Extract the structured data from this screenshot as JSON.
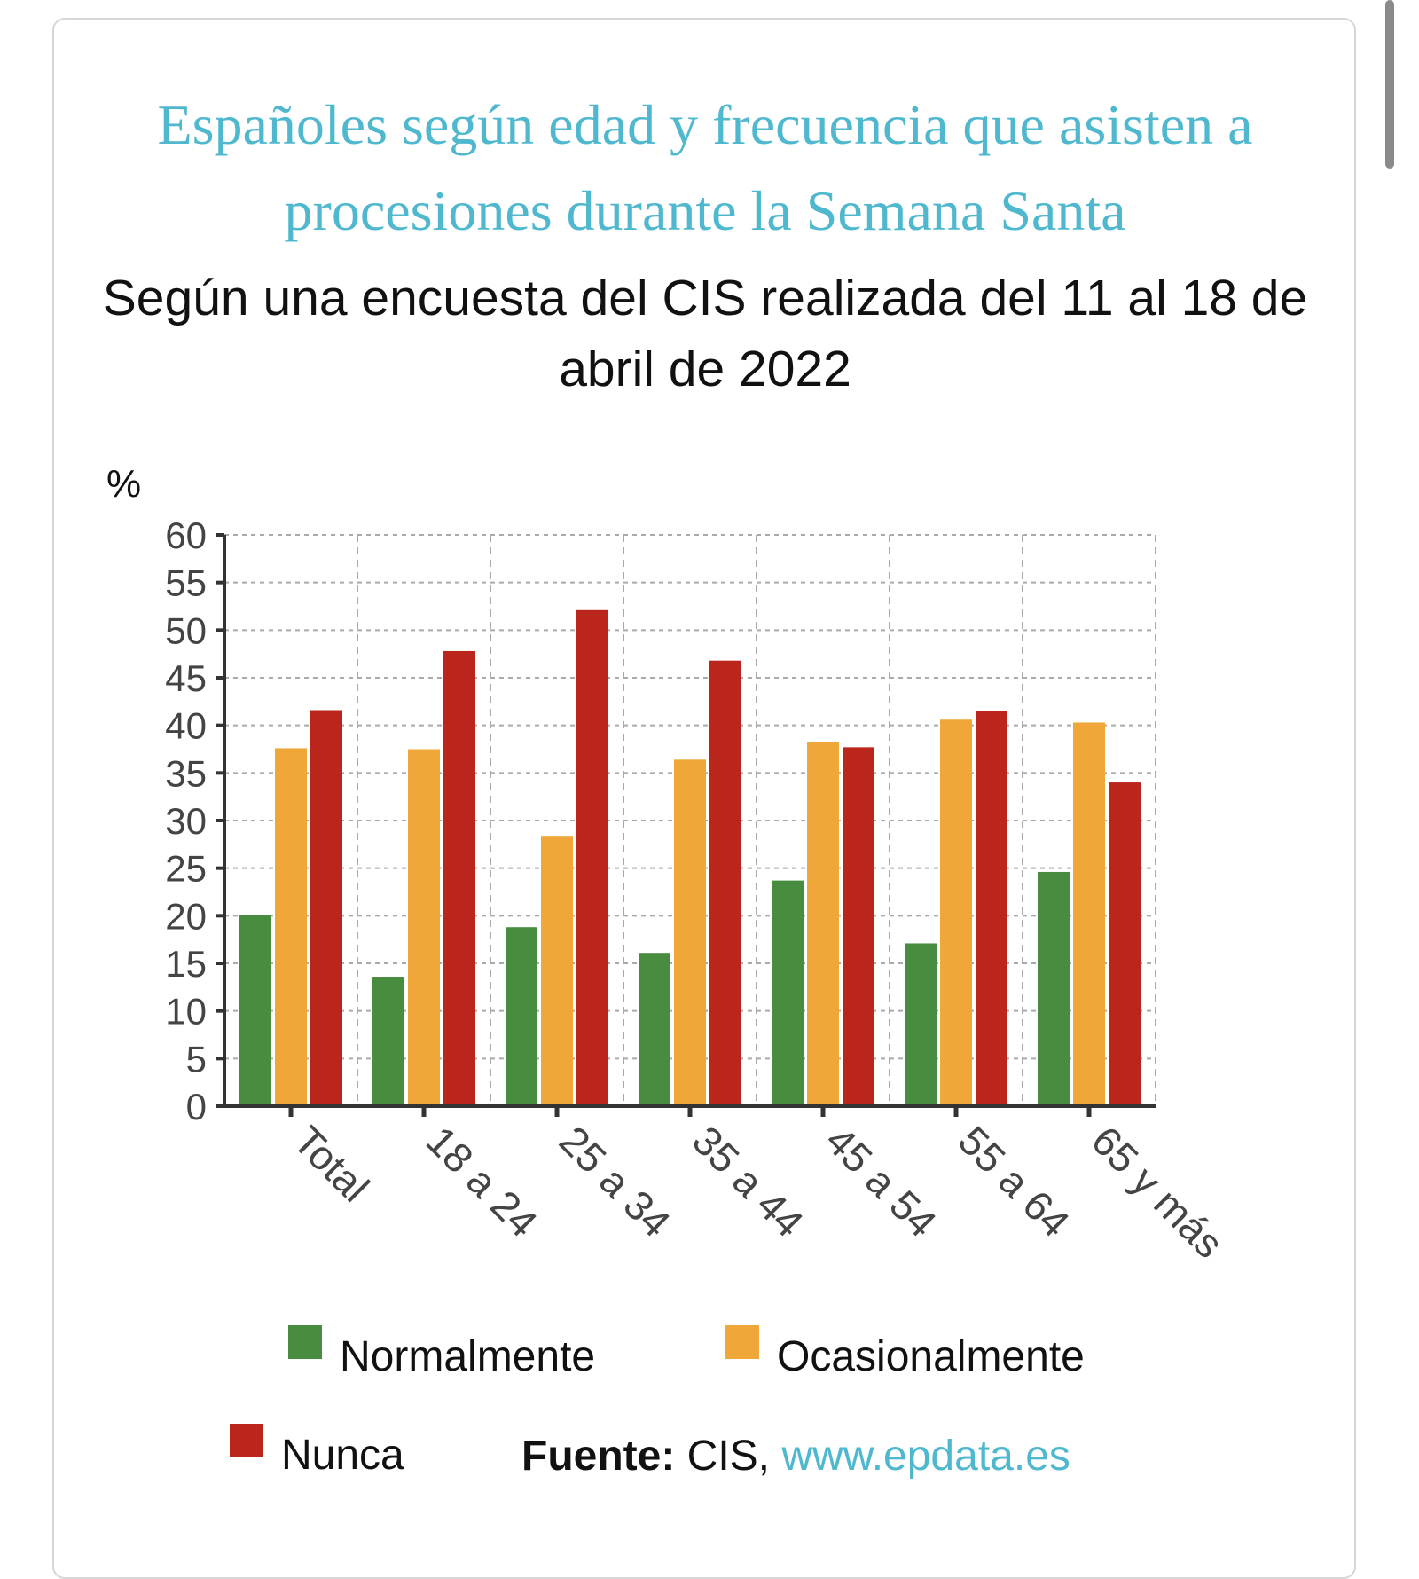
{
  "title": "Españoles según edad y frecuencia que asisten a procesiones durante la Semana Santa",
  "subtitle": "Según una encuesta del CIS realizada del 11 al 18 de abril de 2022",
  "chart_data": {
    "type": "bar",
    "ylabel": "%",
    "ylim": [
      0,
      60
    ],
    "yticks": [
      0,
      5,
      10,
      15,
      20,
      25,
      30,
      35,
      40,
      45,
      50,
      55,
      60
    ],
    "grid": true,
    "legend_placement": "bottom",
    "categories": [
      "Total",
      "18 a 24",
      "25 a 34",
      "35 a 44",
      "45 a 54",
      "55 a 64",
      "65 y más"
    ],
    "series": [
      {
        "name": "Normalmente",
        "color": "#478c3f",
        "values": [
          20.1,
          13.6,
          18.8,
          16.1,
          23.7,
          17.1,
          24.6
        ]
      },
      {
        "name": "Ocasionalmente",
        "color": "#f0a73a",
        "values": [
          37.6,
          37.5,
          28.4,
          36.4,
          38.2,
          40.6,
          40.3
        ]
      },
      {
        "name": "Nunca",
        "color": "#bb261c",
        "values": [
          41.6,
          47.8,
          52.1,
          46.8,
          37.7,
          41.5,
          34.0
        ]
      }
    ]
  },
  "source": {
    "label": "Fuente:",
    "text": " CIS, ",
    "link": "www.epdata.es"
  },
  "colors": {
    "title": "#4fb8cf",
    "link": "#4fb8cf"
  }
}
